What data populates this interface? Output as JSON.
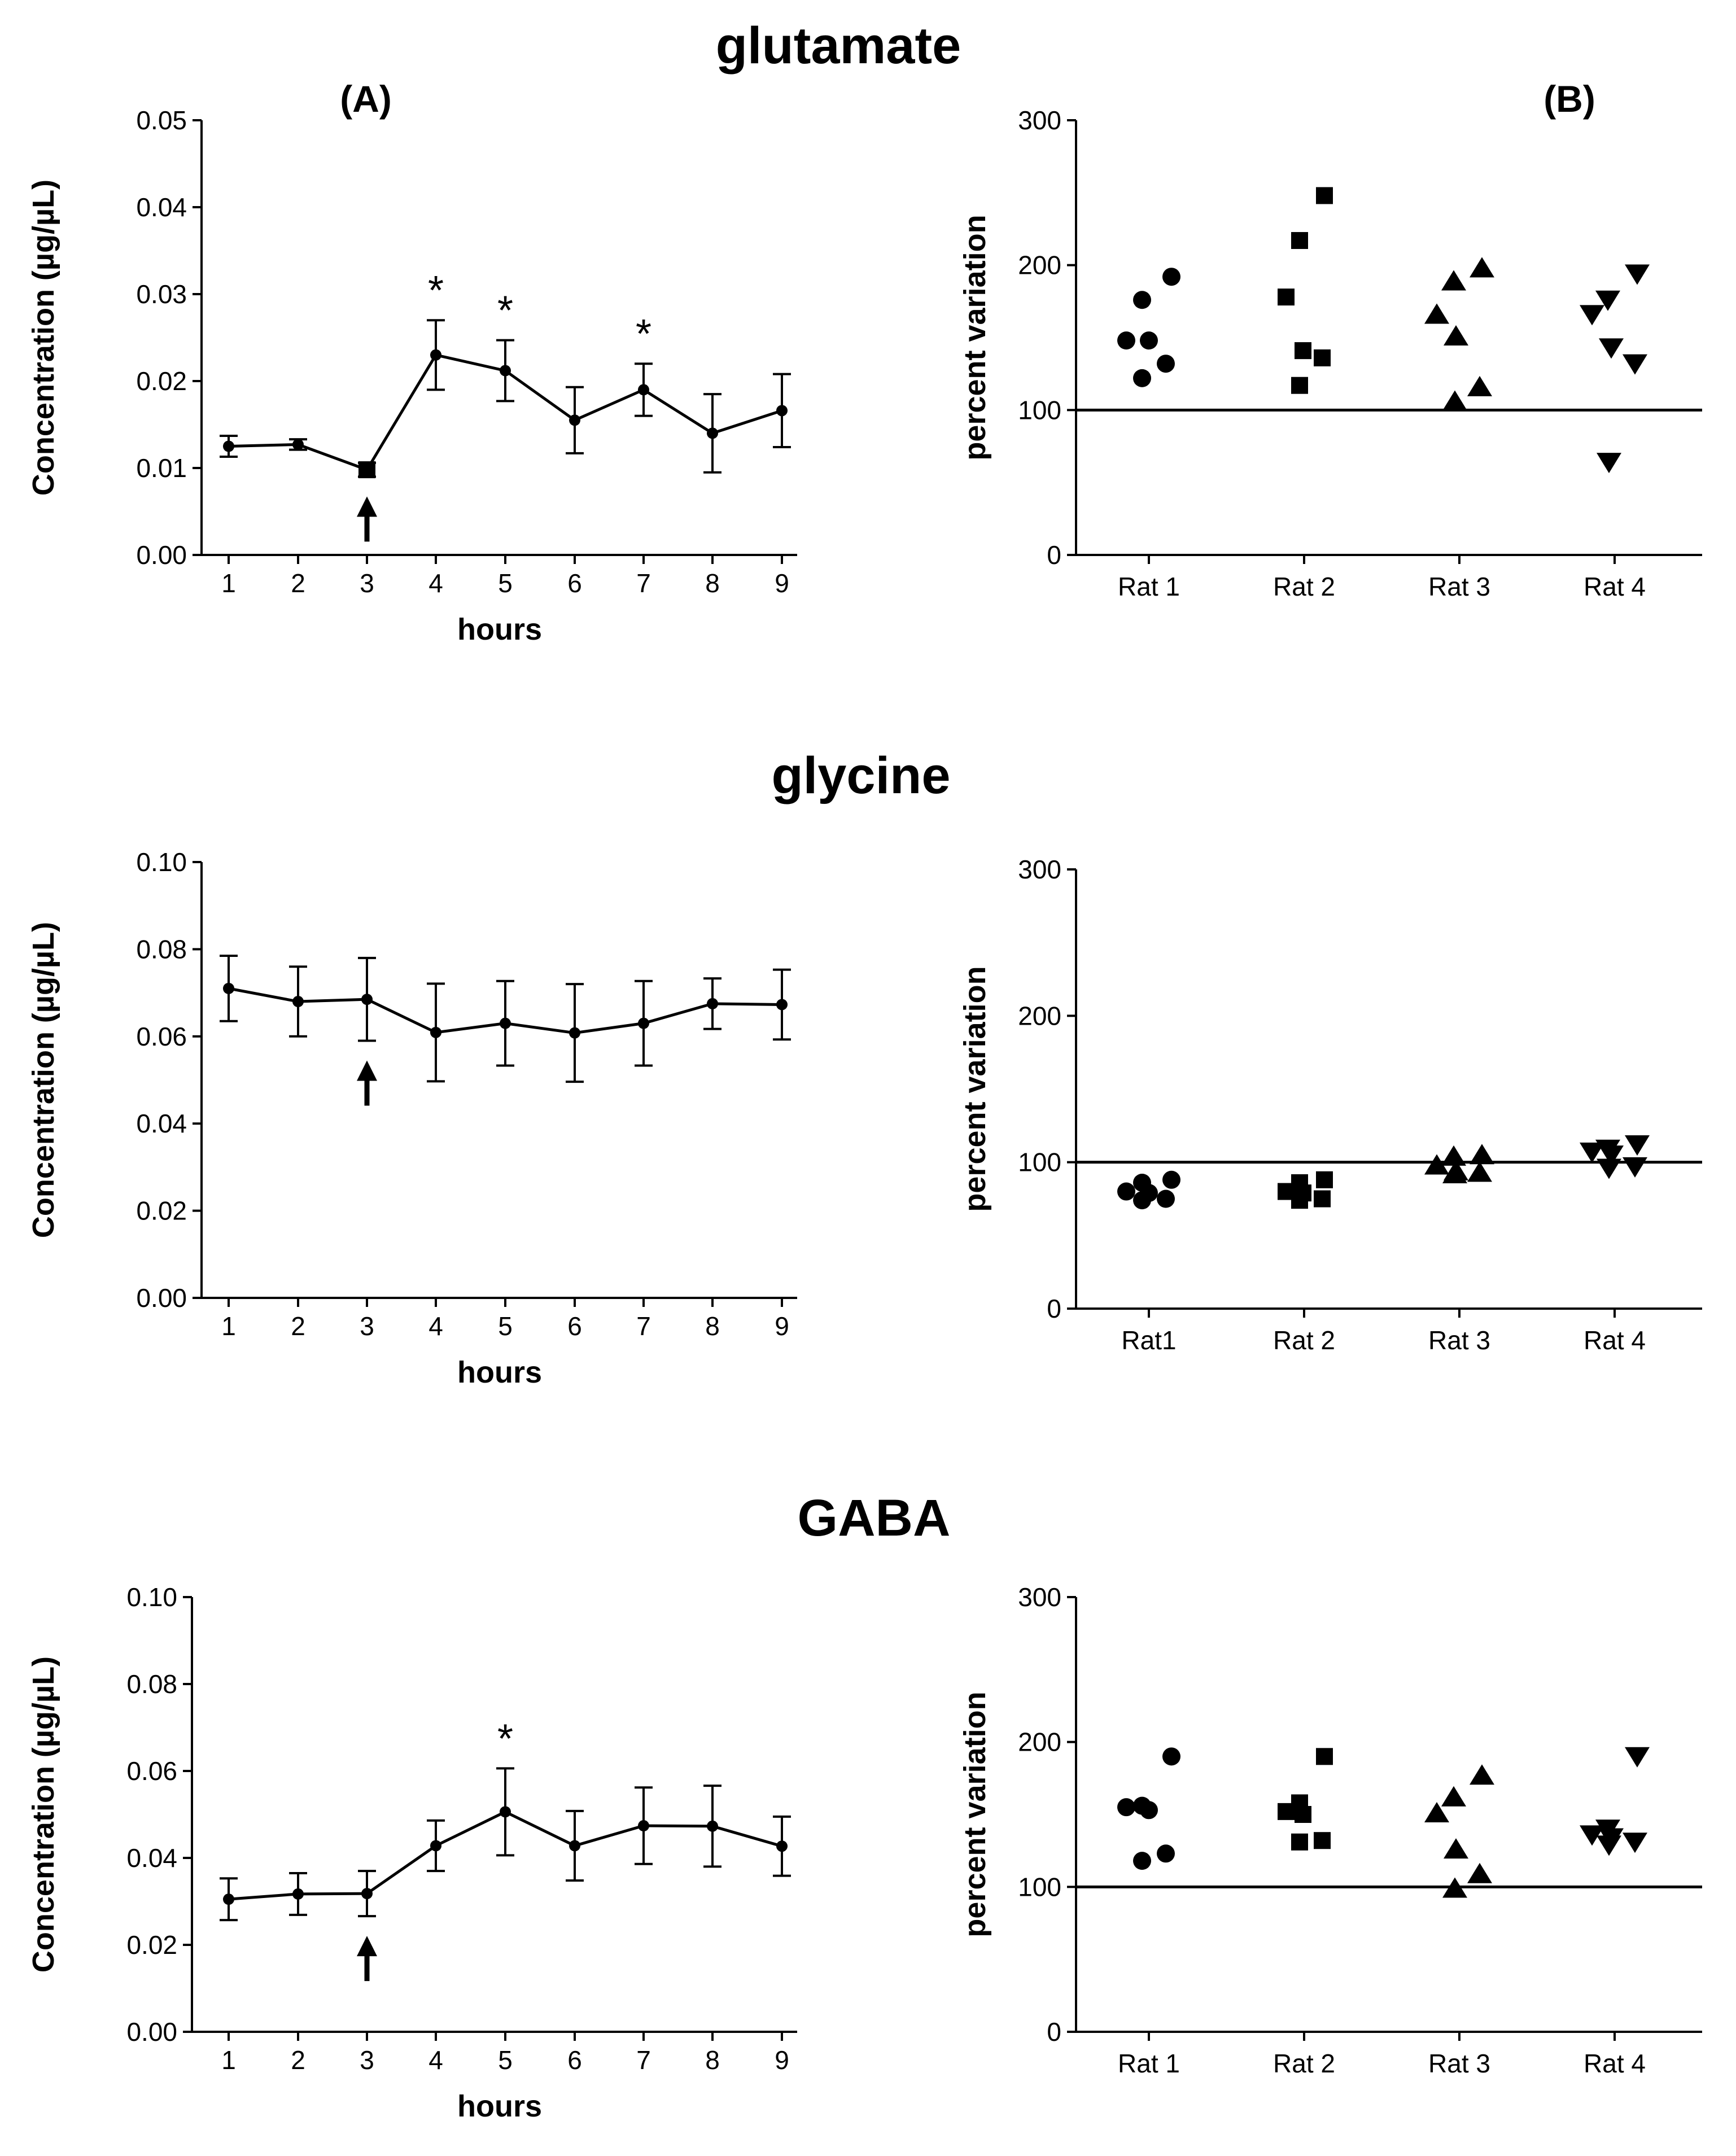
{
  "figure": {
    "panel_labels": [
      "(A)",
      "(B)"
    ],
    "rows": [
      "glutamate",
      "glycine",
      "GABA"
    ]
  },
  "colors": {
    "ink": "#000000",
    "background": "#ffffff"
  },
  "chart_data": [
    {
      "id": "glutamate-A",
      "type": "line",
      "title": "glutamate",
      "panel_label": "(A)",
      "xlabel": "hours",
      "ylabel": "Concentration (µg/µL)",
      "x": [
        1,
        2,
        3,
        4,
        5,
        6,
        7,
        8,
        9
      ],
      "xticks": [
        "1",
        "2",
        "3",
        "4",
        "5",
        "6",
        "7",
        "8",
        "9"
      ],
      "y": [
        0.0125,
        0.0127,
        0.0098,
        0.023,
        0.0212,
        0.0155,
        0.019,
        0.014,
        0.0166
      ],
      "err": [
        0.0012,
        0.0006,
        0.0008,
        0.004,
        0.0035,
        0.0038,
        0.003,
        0.0045,
        0.0042
      ],
      "ylim": [
        0,
        0.05
      ],
      "yticks": [
        "0.00",
        "0.01",
        "0.02",
        "0.03",
        "0.04",
        "0.05"
      ],
      "significant_hours": [
        4,
        5,
        7
      ],
      "significance_marker": "*",
      "arrow_at_hour": 3
    },
    {
      "id": "glutamate-B",
      "type": "scatter",
      "panel_label": "(B)",
      "xlabel": "",
      "ylabel": "percent variation",
      "categories": [
        "Rat 1",
        "Rat 2",
        "Rat 3",
        "Rat 4"
      ],
      "markers": [
        "circle",
        "square",
        "triangle-up",
        "triangle-down"
      ],
      "values": [
        [
          192,
          176,
          148,
          148,
          132,
          122
        ],
        [
          248,
          217,
          178,
          141,
          136,
          117
        ],
        [
          197,
          188,
          165,
          150,
          115,
          105
        ],
        [
          195,
          177,
          167,
          144,
          133,
          65
        ]
      ],
      "ylim": [
        0,
        300
      ],
      "yticks": [
        "0",
        "100",
        "200",
        "300"
      ],
      "reference_line": 100
    },
    {
      "id": "glycine-A",
      "type": "line",
      "title": "glycine",
      "xlabel": "hours",
      "ylabel": "Concentration (µg/µL)",
      "x": [
        1,
        2,
        3,
        4,
        5,
        6,
        7,
        8,
        9
      ],
      "xticks": [
        "1",
        "2",
        "3",
        "4",
        "5",
        "6",
        "7",
        "8",
        "9"
      ],
      "y": [
        0.071,
        0.068,
        0.0685,
        0.0609,
        0.063,
        0.0608,
        0.063,
        0.0675,
        0.0673
      ],
      "err": [
        0.0075,
        0.008,
        0.0095,
        0.0112,
        0.0097,
        0.0112,
        0.0097,
        0.0058,
        0.008
      ],
      "ylim": [
        0,
        0.1
      ],
      "yticks": [
        "0.00",
        "0.02",
        "0.04",
        "0.06",
        "0.08",
        "0.10"
      ],
      "significant_hours": [],
      "significance_marker": "*",
      "arrow_at_hour": 3
    },
    {
      "id": "glycine-B",
      "type": "scatter",
      "xlabel": "",
      "ylabel": "percent variation",
      "categories": [
        "Rat1",
        "Rat 2",
        "Rat 3",
        "Rat 4"
      ],
      "markers": [
        "circle",
        "square",
        "triangle-up",
        "triangle-down"
      ],
      "values": [
        [
          88,
          86,
          80,
          79,
          75,
          74
        ],
        [
          88,
          86,
          80,
          79,
          75,
          74
        ],
        [
          104,
          103,
          97,
          93,
          92,
          91
        ],
        [
          113,
          110,
          108,
          106,
          98,
          97
        ]
      ],
      "ylim": [
        0,
        300
      ],
      "yticks": [
        "0",
        "100",
        "200",
        "300"
      ],
      "reference_line": 100
    },
    {
      "id": "gaba-A",
      "type": "line",
      "title": "GABA",
      "xlabel": "hours",
      "ylabel": "Concentration (µg/µL)",
      "x": [
        1,
        2,
        3,
        4,
        5,
        6,
        7,
        8,
        9
      ],
      "xticks": [
        "1",
        "2",
        "3",
        "4",
        "5",
        "6",
        "7",
        "8",
        "9"
      ],
      "y": [
        0.0305,
        0.0317,
        0.0318,
        0.0428,
        0.0506,
        0.0428,
        0.0474,
        0.0473,
        0.0427
      ],
      "err": [
        0.0048,
        0.0048,
        0.0052,
        0.0058,
        0.01,
        0.008,
        0.0088,
        0.0093,
        0.0068
      ],
      "ylim": [
        0,
        0.1
      ],
      "yticks": [
        "0.00",
        "0.02",
        "0.04",
        "0.06",
        "0.08",
        "0.10"
      ],
      "significant_hours": [
        5
      ],
      "significance_marker": "*",
      "arrow_at_hour": 3
    },
    {
      "id": "gaba-B",
      "type": "scatter",
      "xlabel": "",
      "ylabel": "percent variation",
      "categories": [
        "Rat 1",
        "Rat 2",
        "Rat 3",
        "Rat 4"
      ],
      "markers": [
        "circle",
        "square",
        "triangle-up",
        "triangle-down"
      ],
      "values": [
        [
          190,
          156,
          155,
          153,
          123,
          118
        ],
        [
          190,
          158,
          152,
          150,
          132,
          131
        ],
        [
          176,
          161,
          150,
          125,
          108,
          98
        ],
        [
          191,
          141,
          137,
          135,
          132,
          130
        ]
      ],
      "ylim": [
        0,
        300
      ],
      "yticks": [
        "0",
        "100",
        "200",
        "300"
      ],
      "reference_line": 100
    }
  ]
}
